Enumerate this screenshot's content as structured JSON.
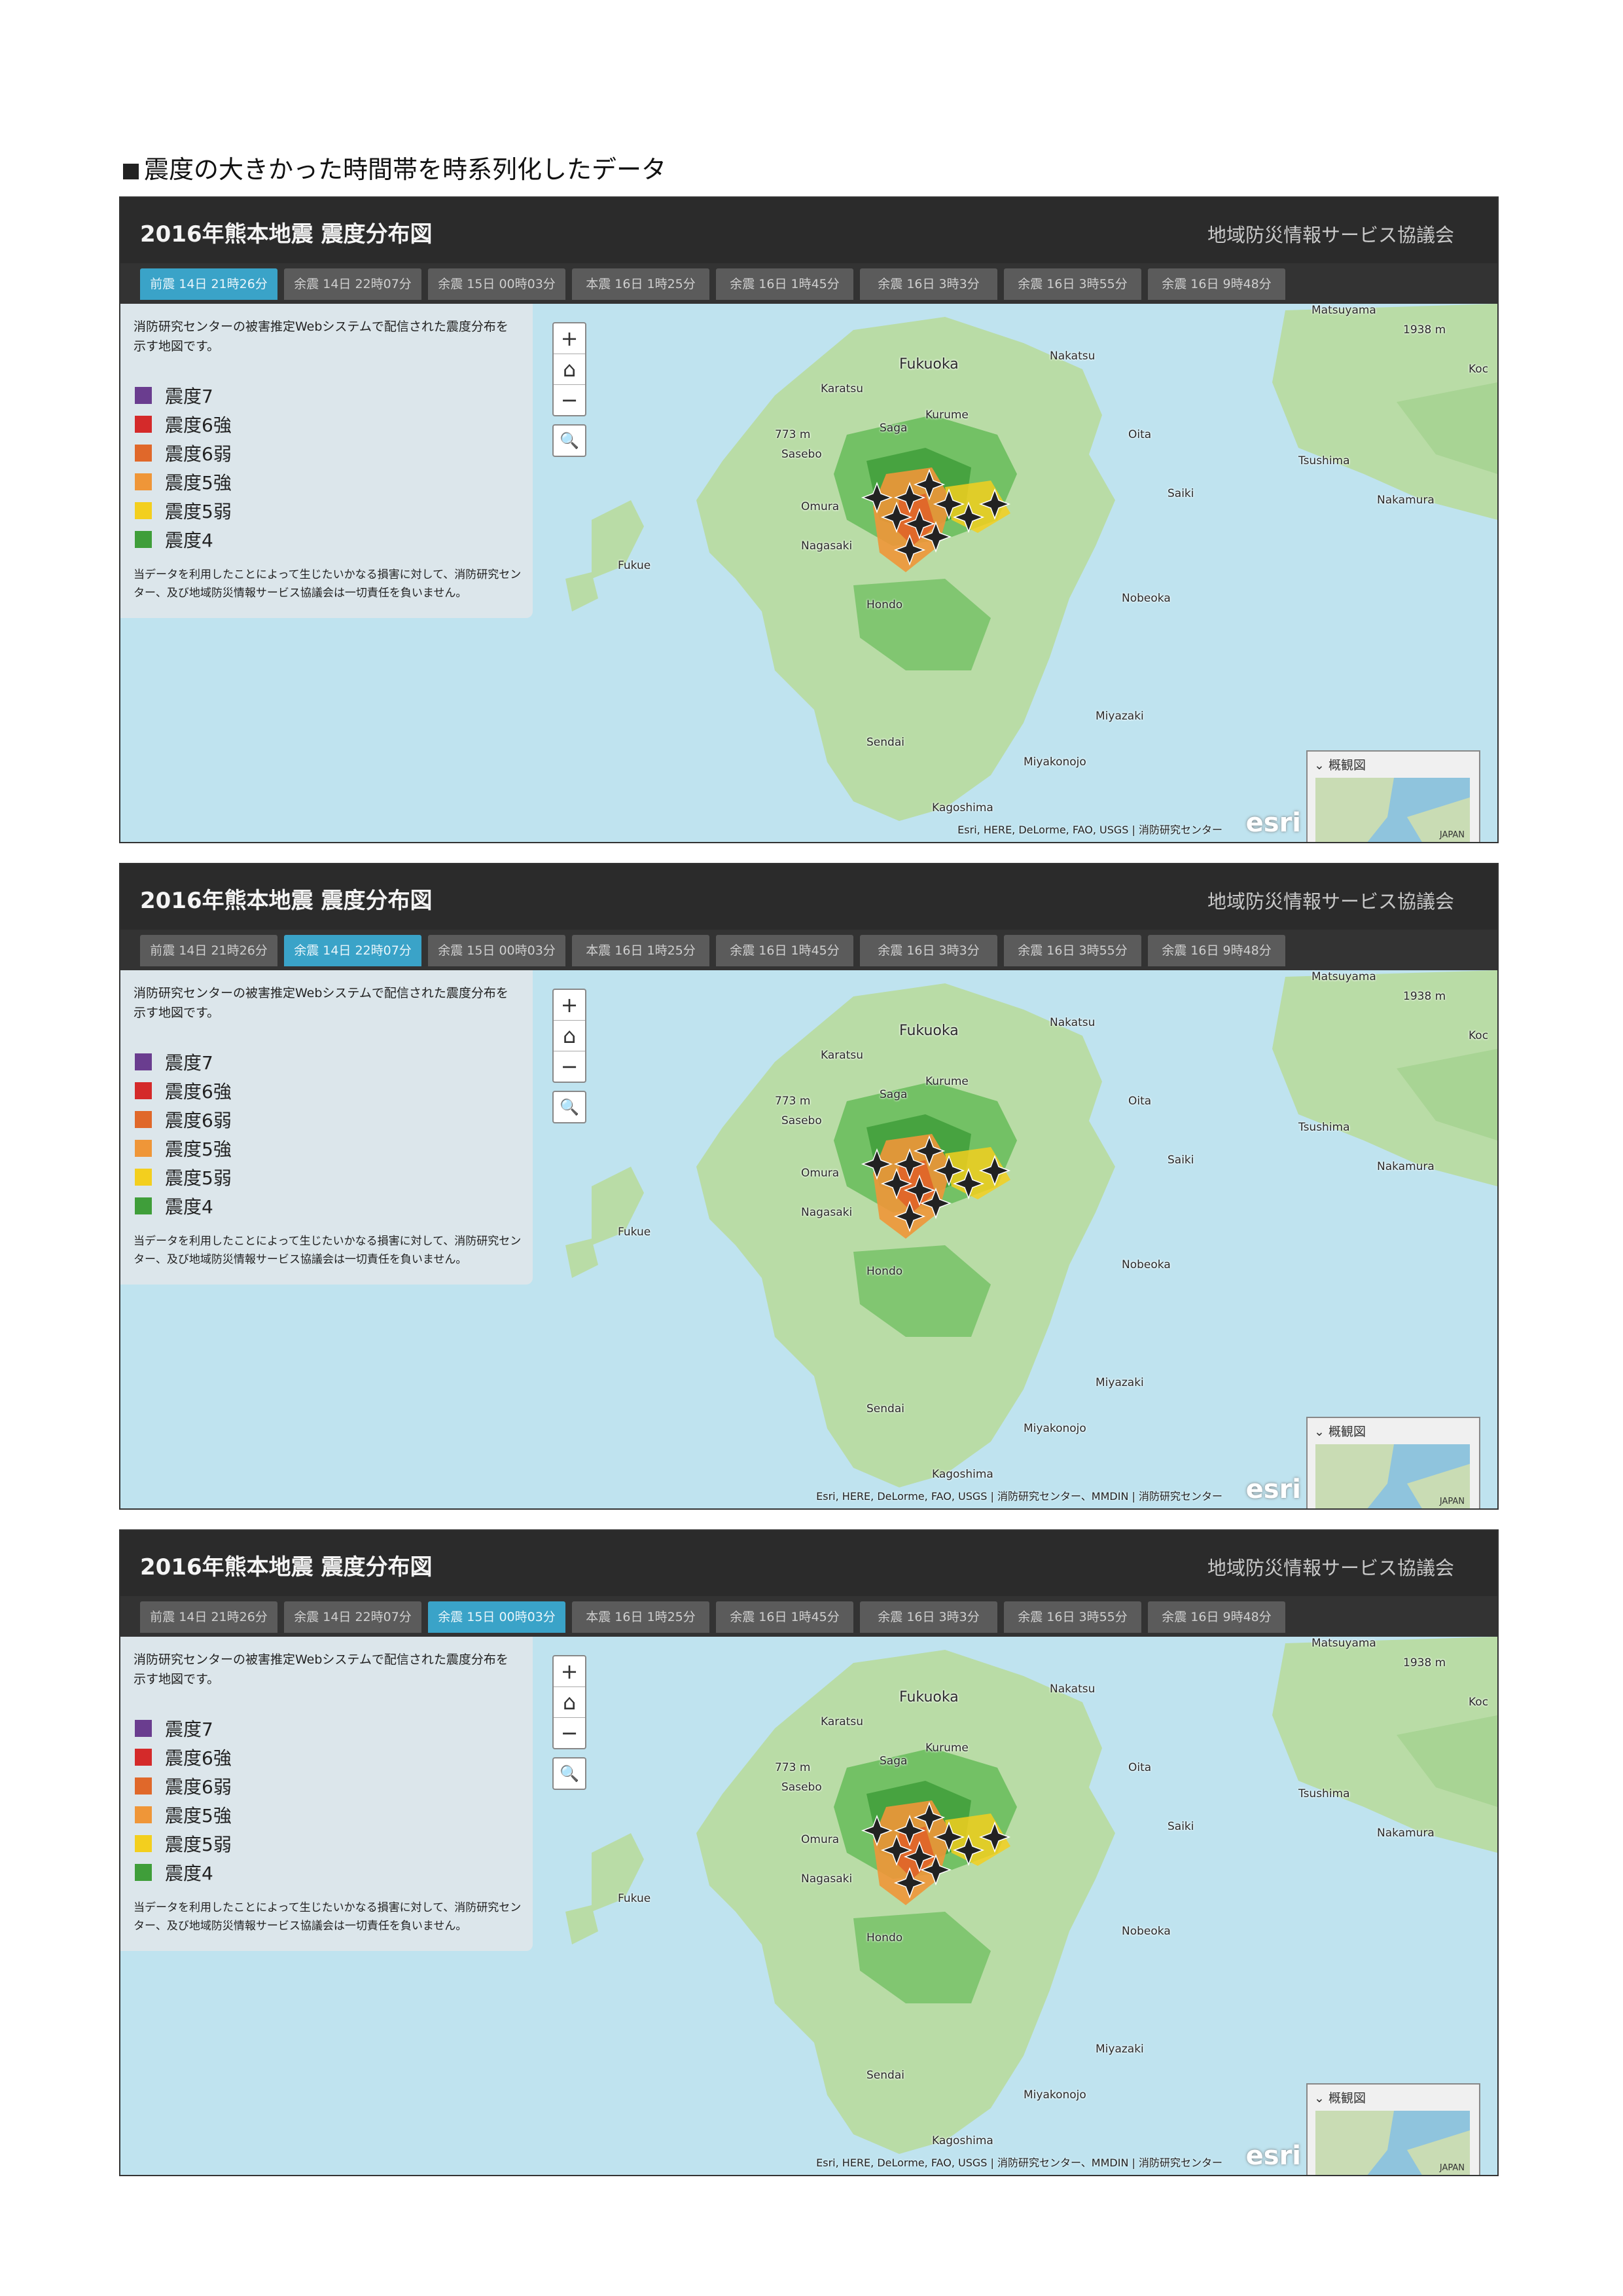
{
  "heading": "震度の大きかった時間帯を時系列化したデータ",
  "app": {
    "title": "2016年熊本地震 震度分布図",
    "organization": "地域防災情報サービス協議会"
  },
  "tabs": [
    "前震 14日 21時26分",
    "余震 14日 22時07分",
    "余震 15日 00時03分",
    "本震 16日 1時25分",
    "余震 16日 1時45分",
    "余震 16日 3時3分",
    "余震 16日 3時55分",
    "余震 16日 9時48分"
  ],
  "legend": {
    "intro": "消防研究センターの被害推定Webシステムで配信された震度分布を示す地図です。",
    "items": [
      {
        "label": "震度7",
        "color": "#6a3d8f"
      },
      {
        "label": "震度6強",
        "color": "#d42a2a"
      },
      {
        "label": "震度6弱",
        "color": "#e0682a"
      },
      {
        "label": "震度5強",
        "color": "#ef9638"
      },
      {
        "label": "震度5弱",
        "color": "#f3cf1e"
      },
      {
        "label": "震度4",
        "color": "#3f9e3a"
      }
    ],
    "note": "当データを利用したことによって生じたいかなる損害に対して、消防研究センター、及び地域防災情報サービス協議会は一切責任を負いません。"
  },
  "controls": {
    "zoom_in": "+",
    "home": "⌂",
    "zoom_out": "−",
    "search": "🔍"
  },
  "overview": {
    "label": "概観図",
    "country": "JAPAN"
  },
  "places": {
    "fukuoka": "Fukuoka",
    "nakatsu": "Nakatsu",
    "karatsu": "Karatsu",
    "saga": "Saga",
    "kurume": "Kurume",
    "oita": "Oita",
    "sasebo": "Sasebo",
    "omura": "Omura",
    "nagasaki": "Nagasaki",
    "saiki": "Saiki",
    "fukue": "Fukue",
    "hondo": "Hondo",
    "nobeoka": "Nobeoka",
    "miyazaki": "Miyazaki",
    "sendai": "Sendai",
    "miyakonojo": "Miyakonojo",
    "kagoshima": "Kagoshima",
    "tsushima": "Tsushima",
    "nakamura": "Nakamura",
    "matsuyama": "Matsuyama",
    "koc": "Koc",
    "elev_1": "773 m",
    "elev_2": "1938 m"
  },
  "panels": [
    {
      "active_tab": 0,
      "timestamp": "前震 2016/4/14　21 : 26",
      "attribution": "Esri, HERE, DeLorme, FAO, USGS | 消防研究センター",
      "esri": "esri"
    },
    {
      "active_tab": 1,
      "timestamp": "余震 2016/4/14　22 : 07",
      "attribution": "Esri, HERE, DeLorme, FAO, USGS | 消防研究センター、MMDIN | 消防研究センター",
      "esri": "esri"
    },
    {
      "active_tab": 2,
      "timestamp": "余震 2016/4/15　00 : 03",
      "attribution": "Esri, HERE, DeLorme, FAO, USGS | 消防研究センター、MMDIN | 消防研究センター",
      "esri": "esri"
    }
  ]
}
